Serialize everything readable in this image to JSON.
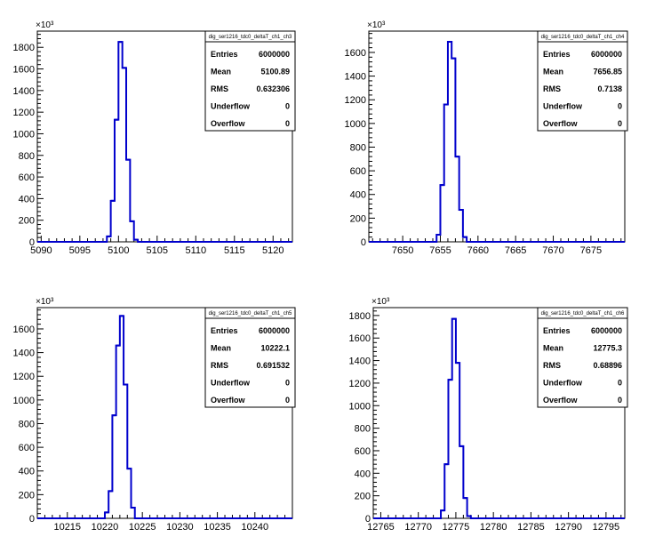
{
  "multiplier_label": "×10³",
  "chart_data": [
    {
      "type": "histogram",
      "title": "",
      "xlabel": "",
      "ylabel": "",
      "xlim": [
        5089.5,
        5122.5
      ],
      "ylim": [
        0,
        1.95
      ],
      "y_unit_multiplier": 1000,
      "grid": false,
      "line_color": "#0000cc",
      "xticks": [
        5090,
        5095,
        5100,
        5105,
        5110,
        5115,
        5120
      ],
      "yticks": [
        0,
        200,
        400,
        600,
        800,
        1000,
        1200,
        1400,
        1600,
        1800
      ],
      "bins": [
        {
          "x0": 5098.5,
          "x1": 5099.0,
          "y": 0.05
        },
        {
          "x0": 5099.0,
          "x1": 5099.5,
          "y": 0.38
        },
        {
          "x0": 5099.5,
          "x1": 5100.0,
          "y": 1.13
        },
        {
          "x0": 5100.0,
          "x1": 5100.5,
          "y": 1.85
        },
        {
          "x0": 5100.5,
          "x1": 5101.0,
          "y": 1.61
        },
        {
          "x0": 5101.0,
          "x1": 5101.5,
          "y": 0.76
        },
        {
          "x0": 5101.5,
          "x1": 5102.0,
          "y": 0.19
        },
        {
          "x0": 5102.0,
          "x1": 5102.5,
          "y": 0.02
        }
      ],
      "stats": {
        "name": "dig_ser1216_tdc0_deltaT_ch1_ch3",
        "rows": [
          {
            "label": "Entries",
            "value": "6000000"
          },
          {
            "label": "Mean",
            "value": "5100.89"
          },
          {
            "label": "RMS",
            "value": "0.632306"
          },
          {
            "label": "Underflow",
            "value": "0"
          },
          {
            "label": "Overflow",
            "value": "0"
          }
        ]
      }
    },
    {
      "type": "histogram",
      "title": "",
      "xlabel": "",
      "ylabel": "",
      "xlim": [
        7645.5,
        7679.5
      ],
      "ylim": [
        0,
        1.78
      ],
      "y_unit_multiplier": 1000,
      "grid": false,
      "line_color": "#0000cc",
      "xticks": [
        7650,
        7655,
        7660,
        7665,
        7670,
        7675
      ],
      "yticks": [
        0,
        200,
        400,
        600,
        800,
        1000,
        1200,
        1400,
        1600
      ],
      "bins": [
        {
          "x0": 7654.5,
          "x1": 7655.0,
          "y": 0.06
        },
        {
          "x0": 7655.0,
          "x1": 7655.5,
          "y": 0.48
        },
        {
          "x0": 7655.5,
          "x1": 7656.0,
          "y": 1.16
        },
        {
          "x0": 7656.0,
          "x1": 7656.5,
          "y": 1.69
        },
        {
          "x0": 7656.5,
          "x1": 7657.0,
          "y": 1.55
        },
        {
          "x0": 7657.0,
          "x1": 7657.5,
          "y": 0.72
        },
        {
          "x0": 7657.5,
          "x1": 7658.0,
          "y": 0.27
        },
        {
          "x0": 7658.0,
          "x1": 7658.5,
          "y": 0.04
        }
      ],
      "stats": {
        "name": "dig_ser1216_tdc0_deltaT_ch1_ch4",
        "rows": [
          {
            "label": "Entries",
            "value": "6000000"
          },
          {
            "label": "Mean",
            "value": "7656.85"
          },
          {
            "label": "RMS",
            "value": "0.7138"
          },
          {
            "label": "Underflow",
            "value": "0"
          },
          {
            "label": "Overflow",
            "value": "0"
          }
        ]
      }
    },
    {
      "type": "histogram",
      "title": "",
      "xlabel": "",
      "ylabel": "",
      "xlim": [
        10211.0,
        10245.0
      ],
      "ylim": [
        0,
        1.78
      ],
      "y_unit_multiplier": 1000,
      "grid": false,
      "line_color": "#0000cc",
      "xticks": [
        10215,
        10220,
        10225,
        10230,
        10235,
        10240
      ],
      "yticks": [
        0,
        200,
        400,
        600,
        800,
        1000,
        1200,
        1400,
        1600
      ],
      "bins": [
        {
          "x0": 10220.0,
          "x1": 10220.5,
          "y": 0.05
        },
        {
          "x0": 10220.5,
          "x1": 10221.0,
          "y": 0.23
        },
        {
          "x0": 10221.0,
          "x1": 10221.5,
          "y": 0.87
        },
        {
          "x0": 10221.5,
          "x1": 10222.0,
          "y": 1.46
        },
        {
          "x0": 10222.0,
          "x1": 10222.5,
          "y": 1.71
        },
        {
          "x0": 10222.5,
          "x1": 10223.0,
          "y": 1.13
        },
        {
          "x0": 10223.0,
          "x1": 10223.5,
          "y": 0.42
        },
        {
          "x0": 10223.5,
          "x1": 10224.0,
          "y": 0.09
        }
      ],
      "stats": {
        "name": "dig_ser1216_tdc0_deltaT_ch1_ch5",
        "rows": [
          {
            "label": "Entries",
            "value": "6000000"
          },
          {
            "label": "Mean",
            "value": "10222.1"
          },
          {
            "label": "RMS",
            "value": "0.691532"
          },
          {
            "label": "Underflow",
            "value": "0"
          },
          {
            "label": "Overflow",
            "value": "0"
          }
        ]
      }
    },
    {
      "type": "histogram",
      "title": "",
      "xlabel": "",
      "ylabel": "",
      "xlim": [
        12764.0,
        12797.5
      ],
      "ylim": [
        0,
        1.87
      ],
      "y_unit_multiplier": 1000,
      "grid": false,
      "line_color": "#0000cc",
      "xticks": [
        12765,
        12770,
        12775,
        12780,
        12785,
        12790,
        12795
      ],
      "yticks": [
        0,
        200,
        400,
        600,
        800,
        1000,
        1200,
        1400,
        1600,
        1800
      ],
      "bins": [
        {
          "x0": 12773.0,
          "x1": 12773.5,
          "y": 0.07
        },
        {
          "x0": 12773.5,
          "x1": 12774.0,
          "y": 0.48
        },
        {
          "x0": 12774.0,
          "x1": 12774.5,
          "y": 1.23
        },
        {
          "x0": 12774.5,
          "x1": 12775.0,
          "y": 1.77
        },
        {
          "x0": 12775.0,
          "x1": 12775.5,
          "y": 1.38
        },
        {
          "x0": 12775.5,
          "x1": 12776.0,
          "y": 0.64
        },
        {
          "x0": 12776.0,
          "x1": 12776.5,
          "y": 0.18
        },
        {
          "x0": 12776.5,
          "x1": 12777.0,
          "y": 0.02
        }
      ],
      "stats": {
        "name": "dig_ser1216_tdc0_deltaT_ch1_ch6",
        "rows": [
          {
            "label": "Entries",
            "value": "6000000"
          },
          {
            "label": "Mean",
            "value": "12775.3"
          },
          {
            "label": "RMS",
            "value": "0.68896"
          },
          {
            "label": "Underflow",
            "value": "0"
          },
          {
            "label": "Overflow",
            "value": "0"
          }
        ]
      }
    }
  ]
}
